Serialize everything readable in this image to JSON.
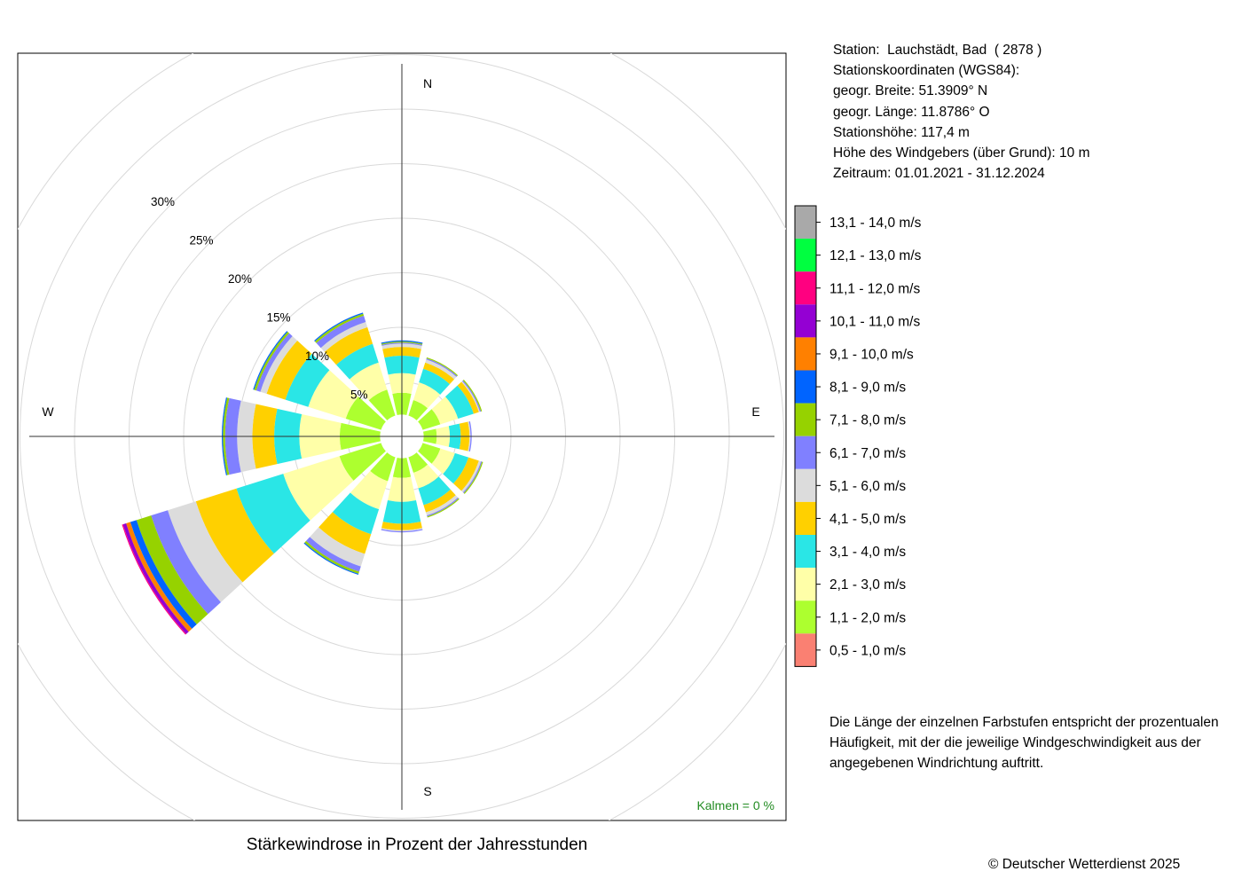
{
  "station_info": {
    "station": "Station:  Lauchstädt, Bad  ( 2878 )",
    "coords_title": "Stationskoordinaten (WGS84):",
    "lat": "geogr. Breite: 51.3909° N",
    "lon": "geogr. Länge: 11.8786° O",
    "elevation": "Stationshöhe: 117,4 m",
    "sensor_height": "Höhe des Windgebers (über Grund): 10 m",
    "period": "Zeitraum: 01.01.2021 - 31.12.2024"
  },
  "note": "Die Länge der einzelnen Farbstufen entspricht der prozentualen Häufigkeit, mit der die jeweilige Windgeschwindigkeit aus der angegebenen Windrichtung auftritt.",
  "caption": "Stärkewindrose in Prozent der Jahresstunden",
  "copyright": "© Deutscher Wetterdienst  2025",
  "chart_data": {
    "type": "windrose",
    "title": "Stärkewindrose in Prozent der Jahresstunden",
    "calm_label": "Kalmen  =  0 %",
    "radial_unit": "%",
    "radial_ticks": [
      5,
      10,
      15,
      20,
      25,
      30
    ],
    "radial_tick_labels": [
      "5%",
      "10%",
      "15%",
      "20%",
      "25%",
      "30%"
    ],
    "radial_max": 30,
    "directions": [
      "N",
      "E",
      "S",
      "W"
    ],
    "sector_centers_deg": [
      0,
      30,
      60,
      90,
      120,
      150,
      180,
      210,
      240,
      270,
      300,
      330
    ],
    "speed_classes": [
      {
        "label": "0,5 - 1,0 m/s",
        "color": "#FA8072"
      },
      {
        "label": "1,1 - 2,0 m/s",
        "color": "#ADFF2F"
      },
      {
        "label": "2,1 - 3,0 m/s",
        "color": "#FFFFA8"
      },
      {
        "label": "3,1 - 4,0 m/s",
        "color": "#2AE6E6"
      },
      {
        "label": "4,1 - 5,0 m/s",
        "color": "#FFD000"
      },
      {
        "label": "5,1 - 6,0 m/s",
        "color": "#DCDCDC"
      },
      {
        "label": "6,1 - 7,0 m/s",
        "color": "#8080FF"
      },
      {
        "label": "7,1 - 8,0 m/s",
        "color": "#96D200"
      },
      {
        "label": "8,1 - 9,0 m/s",
        "color": "#0064FF"
      },
      {
        "label": "9,1 - 10,0 m/s",
        "color": "#FF8000"
      },
      {
        "label": "10,1 - 11,0 m/s",
        "color": "#9400D3"
      },
      {
        "label": "11,1 - 12,0 m/s",
        "color": "#FF0080"
      },
      {
        "label": "12,1 - 13,0 m/s",
        "color": "#00FF40"
      },
      {
        "label": "13,1 - 14,0 m/s",
        "color": "#A9A9A9"
      }
    ],
    "sectors_cumulative_pct": [
      [
        2.0,
        4.0,
        5.8,
        7.4,
        8.2,
        8.5,
        8.6,
        8.7,
        8.8,
        8.8,
        8.8,
        8.8,
        8.8,
        8.8
      ],
      [
        2.0,
        3.5,
        5.2,
        6.5,
        7.1,
        7.4,
        7.5,
        7.6,
        7.6,
        7.6,
        7.6,
        7.6,
        7.6,
        7.6
      ],
      [
        2.0,
        3.7,
        5.4,
        6.9,
        7.4,
        7.5,
        7.6,
        7.7,
        7.7,
        7.7,
        7.7,
        7.7,
        7.7,
        7.7
      ],
      [
        2.0,
        3.2,
        4.4,
        5.4,
        6.2,
        6.3,
        6.4,
        6.4,
        6.4,
        6.4,
        6.4,
        6.4,
        6.4,
        6.4
      ],
      [
        2.0,
        3.7,
        5.1,
        6.4,
        7.4,
        7.6,
        7.7,
        7.8,
        7.8,
        7.8,
        7.8,
        7.8,
        7.8,
        7.8
      ],
      [
        2.0,
        3.5,
        5.0,
        6.6,
        7.3,
        7.6,
        7.7,
        7.8,
        7.8,
        7.8,
        7.8,
        7.8,
        7.8,
        7.8
      ],
      [
        2.0,
        3.8,
        6.0,
        8.0,
        8.6,
        8.7,
        8.8,
        8.8,
        8.8,
        8.8,
        8.8,
        8.8,
        8.8,
        8.8
      ],
      [
        2.0,
        4.3,
        7.0,
        9.4,
        11.3,
        12.5,
        13.0,
        13.2,
        13.3,
        13.3,
        13.3,
        13.3,
        13.3,
        13.3
      ],
      [
        2.0,
        6.0,
        11.4,
        15.9,
        19.8,
        22.5,
        24.1,
        25.5,
        26.1,
        26.5,
        26.8,
        26.9,
        26.9,
        26.9
      ],
      [
        2.0,
        5.7,
        9.4,
        11.7,
        13.7,
        15.1,
        16.2,
        16.4,
        16.5,
        16.5,
        16.5,
        16.5,
        16.5,
        16.5
      ],
      [
        2.0,
        5.4,
        9.0,
        11.2,
        13.0,
        13.6,
        14.0,
        14.2,
        14.3,
        14.3,
        14.3,
        14.3,
        14.3,
        14.3
      ],
      [
        2.0,
        4.5,
        7.1,
        8.9,
        10.5,
        11.0,
        11.6,
        11.8,
        11.9,
        11.9,
        11.9,
        11.9,
        11.9,
        11.9
      ]
    ]
  }
}
